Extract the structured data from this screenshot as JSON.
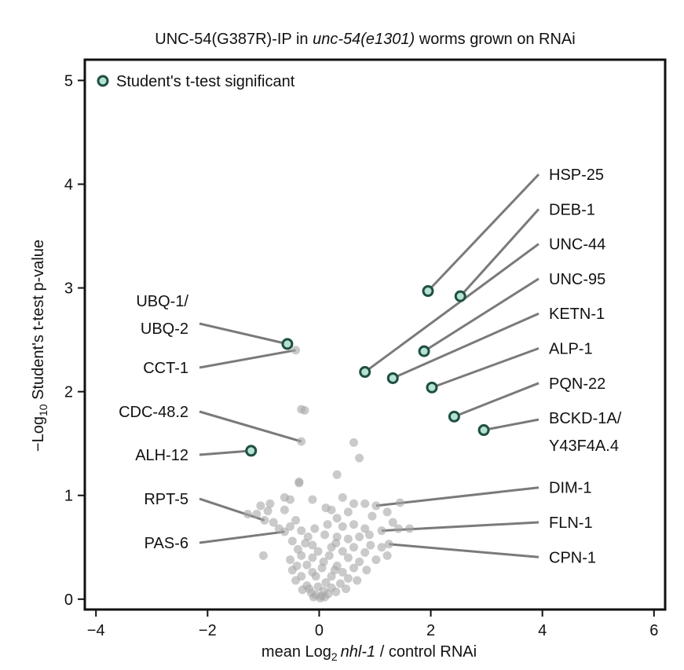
{
  "chart_data": {
    "type": "scatter",
    "title": {
      "prefix": "UNC-54(G387R)-IP in ",
      "italic": "unc-54(e1301)",
      "suffix": " worms grown on RNAi"
    },
    "xlabel": {
      "prefix": "mean Log",
      "sub": "2",
      "italic": "nhl-1",
      "suffix": " / control RNAi"
    },
    "ylabel": {
      "prefix": "−Log",
      "sub": "10",
      "suffix": " Student's t-test p-value"
    },
    "xlim": [
      -4.2,
      6.2
    ],
    "ylim": [
      -0.1,
      5.2
    ],
    "xticks": [
      -4,
      -2,
      0,
      2,
      4,
      6
    ],
    "xtick_labels": [
      "−4",
      "−2",
      "0",
      "2",
      "4",
      "6"
    ],
    "yticks": [
      0,
      1,
      2,
      3,
      4,
      5
    ],
    "ytick_labels": [
      "0",
      "1",
      "2",
      "3",
      "4",
      "5"
    ],
    "grid": false,
    "legend": {
      "position": "top-left",
      "label": "Student's t-test significant"
    },
    "colors": {
      "background_points": "#a6a6a6",
      "significant_fill": "#b5e2d2",
      "significant_edge": "#1f4f43",
      "leader_line": "#7a7a7a",
      "axis": "#111111"
    },
    "significant_proteins": [
      {
        "x": 1.95,
        "y": 2.97,
        "label": "HSP-25",
        "side": "right"
      },
      {
        "x": 2.53,
        "y": 2.92,
        "label": "DEB-1",
        "side": "right"
      },
      {
        "x": 0.82,
        "y": 2.19,
        "label": "UNC-44",
        "side": "right"
      },
      {
        "x": 1.88,
        "y": 2.39,
        "label": "UNC-95",
        "side": "right"
      },
      {
        "x": 1.32,
        "y": 2.13,
        "label": "KETN-1",
        "side": "right"
      },
      {
        "x": 2.02,
        "y": 2.04,
        "label": "ALP-1",
        "side": "right"
      },
      {
        "x": 2.42,
        "y": 1.76,
        "label": "PQN-22",
        "side": "right"
      },
      {
        "x": 2.95,
        "y": 1.63,
        "label": "BCKD-1A/\nY43F4A.4",
        "side": "right"
      },
      {
        "x": -0.57,
        "y": 2.46,
        "label": "UBQ-1/\nUBQ-2",
        "side": "left"
      },
      {
        "x": -1.22,
        "y": 1.43,
        "label": "ALH-12",
        "side": "left"
      }
    ],
    "labeled_nonsignificant": [
      {
        "x": -0.42,
        "y": 2.4,
        "label": "CCT-1",
        "side": "left"
      },
      {
        "x": -0.32,
        "y": 1.52,
        "label": "CDC-48.2",
        "side": "left"
      },
      {
        "x": -0.98,
        "y": 0.76,
        "label": "RPT-5",
        "side": "left"
      },
      {
        "x": -0.62,
        "y": 0.65,
        "label": "PAS-6",
        "side": "left"
      },
      {
        "x": 1.02,
        "y": 0.9,
        "label": "DIM-1",
        "side": "right"
      },
      {
        "x": 1.12,
        "y": 0.66,
        "label": "FLN-1",
        "side": "right"
      },
      {
        "x": 1.25,
        "y": 0.53,
        "label": "CPN-1",
        "side": "right"
      }
    ],
    "other_proteins": [
      [
        -0.32,
        1.83
      ],
      [
        -0.26,
        1.82
      ],
      [
        0.62,
        1.51
      ],
      [
        0.72,
        1.36
      ],
      [
        0.32,
        1.2
      ],
      [
        -0.36,
        1.13
      ],
      [
        -0.36,
        1.12
      ],
      [
        0.42,
        0.98
      ],
      [
        0.62,
        0.92
      ],
      [
        0.82,
        0.92
      ],
      [
        1.45,
        0.93
      ],
      [
        -1.05,
        0.9
      ],
      [
        -0.88,
        0.92
      ],
      [
        -0.62,
        0.98
      ],
      [
        -0.52,
        0.96
      ],
      [
        -0.12,
        0.96
      ],
      [
        -1.28,
        0.82
      ],
      [
        -1.12,
        0.82
      ],
      [
        -0.92,
        0.85
      ],
      [
        -0.62,
        0.86
      ],
      [
        0.12,
        0.88
      ],
      [
        0.22,
        0.86
      ],
      [
        0.52,
        0.84
      ],
      [
        1.22,
        0.84
      ],
      [
        1.32,
        0.74
      ],
      [
        -0.82,
        0.74
      ],
      [
        -0.42,
        0.76
      ],
      [
        0.32,
        0.78
      ],
      [
        -0.72,
        0.68
      ],
      [
        -0.52,
        0.7
      ],
      [
        -0.32,
        0.66
      ],
      [
        -0.08,
        0.68
      ],
      [
        0.42,
        0.7
      ],
      [
        0.62,
        0.72
      ],
      [
        0.82,
        0.68
      ],
      [
        1.42,
        0.68
      ],
      [
        1.62,
        0.68
      ],
      [
        -0.2,
        0.6
      ],
      [
        0.1,
        0.62
      ],
      [
        0.32,
        0.6
      ],
      [
        0.52,
        0.58
      ],
      [
        0.72,
        0.6
      ],
      [
        -0.48,
        0.56
      ],
      [
        -0.12,
        0.52
      ],
      [
        0.22,
        0.5
      ],
      [
        0.62,
        0.5
      ],
      [
        0.92,
        0.52
      ],
      [
        1.12,
        0.5
      ],
      [
        -0.38,
        0.48
      ],
      [
        0.42,
        0.46
      ],
      [
        0.82,
        0.45
      ],
      [
        -1.0,
        0.42
      ],
      [
        -0.32,
        0.42
      ],
      [
        -0.12,
        0.4
      ],
      [
        0.18,
        0.42
      ],
      [
        0.52,
        0.4
      ],
      [
        0.72,
        0.36
      ],
      [
        1.02,
        0.38
      ],
      [
        1.22,
        0.42
      ],
      [
        -0.52,
        0.38
      ],
      [
        -0.22,
        0.33
      ],
      [
        0.08,
        0.36
      ],
      [
        0.32,
        0.32
      ],
      [
        0.62,
        0.3
      ],
      [
        -0.48,
        0.28
      ],
      [
        -0.12,
        0.26
      ],
      [
        0.42,
        0.26
      ],
      [
        0.85,
        0.28
      ],
      [
        -0.32,
        0.22
      ],
      [
        -0.06,
        0.22
      ],
      [
        0.22,
        0.22
      ],
      [
        0.52,
        0.2
      ],
      [
        -0.42,
        0.18
      ],
      [
        0.12,
        0.16
      ],
      [
        0.38,
        0.15
      ],
      [
        0.68,
        0.18
      ],
      [
        -0.22,
        0.13
      ],
      [
        -0.02,
        0.12
      ],
      [
        0.22,
        0.11
      ],
      [
        0.48,
        0.1
      ],
      [
        -0.3,
        0.09
      ],
      [
        0.08,
        0.08
      ],
      [
        0.3,
        0.07
      ],
      [
        -0.14,
        0.06
      ],
      [
        0.16,
        0.05
      ],
      [
        -0.06,
        0.04
      ],
      [
        0.04,
        0.03
      ],
      [
        0.1,
        0.02
      ],
      [
        -0.1,
        0.02
      ],
      [
        0.02,
        0.01
      ],
      [
        -0.18,
        0.1
      ],
      [
        0.28,
        0.28
      ],
      [
        0.05,
        0.3
      ],
      [
        -0.02,
        0.46
      ],
      [
        0.3,
        0.54
      ],
      [
        -0.25,
        0.54
      ],
      [
        0.9,
        0.62
      ],
      [
        0.95,
        0.8
      ],
      [
        0.15,
        0.72
      ],
      [
        -0.4,
        0.32
      ]
    ]
  }
}
